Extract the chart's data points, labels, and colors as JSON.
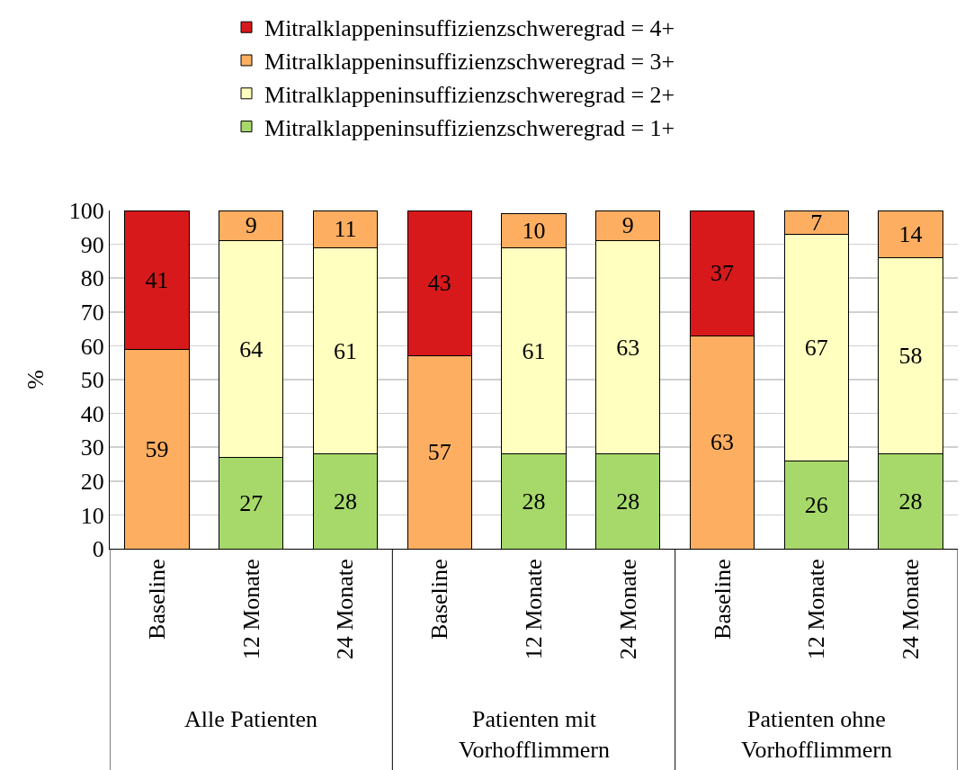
{
  "chart_data": {
    "type": "bar",
    "stacked": true,
    "ylabel": "%",
    "categories": [
      "Baseline",
      "12 Monate",
      "24 Monate",
      "Baseline",
      "12 Monate",
      "24 Monate",
      "Baseline",
      "12 Monate",
      "24 Monate"
    ],
    "series": [
      {
        "name": "Mitralklappeninsuffizienzschweregrad = 1+",
        "color": "#a6d96a",
        "values": [
          null,
          27,
          28,
          null,
          28,
          28,
          null,
          26,
          28
        ]
      },
      {
        "name": "Mitralklappeninsuffizienzschweregrad = 2+",
        "color": "#ffffbf",
        "values": [
          null,
          64,
          61,
          null,
          61,
          63,
          null,
          67,
          58
        ]
      },
      {
        "name": "Mitralklappeninsuffizienzschweregrad = 3+",
        "color": "#fdae61",
        "values": [
          59,
          9,
          11,
          57,
          10,
          9,
          63,
          7,
          14
        ]
      },
      {
        "name": "Mitralklappeninsuffizienzschweregrad = 4+",
        "color": "#d7191c",
        "values": [
          41,
          null,
          null,
          43,
          null,
          null,
          37,
          null,
          null
        ]
      }
    ],
    "annotations": [
      "Alle Patienten",
      "Patienten mit Vorhofflimmern",
      "Patienten ohne Vorhofflimmern"
    ],
    "ylim": [
      0,
      100
    ],
    "yticks": [
      0,
      10,
      20,
      30,
      40,
      50,
      60,
      70,
      80,
      90,
      100
    ],
    "grid": "y",
    "legend": "top",
    "data_labels": true
  }
}
